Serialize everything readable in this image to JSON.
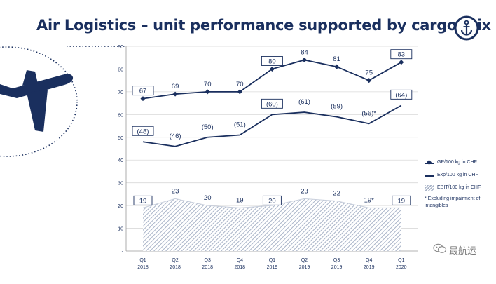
{
  "title": "Air Logistics – unit performance supported by cargo mix",
  "watermark": "最航运",
  "chart_data": {
    "type": "line",
    "categories": [
      "Q1 2018",
      "Q2 2018",
      "Q3 2018",
      "Q4 2018",
      "Q1 2019",
      "Q2 2019",
      "Q3 2019",
      "Q4 2019",
      "Q1 2020"
    ],
    "category_labels": [
      [
        "Q1",
        "2018"
      ],
      [
        "Q2",
        "2018"
      ],
      [
        "Q3",
        "2018"
      ],
      [
        "Q4",
        "2018"
      ],
      [
        "Q1",
        "2019"
      ],
      [
        "Q2",
        "2019"
      ],
      [
        "Q3",
        "2019"
      ],
      [
        "Q4",
        "2019"
      ],
      [
        "Q1",
        "2020"
      ]
    ],
    "series": [
      {
        "name": "GP/100 kg in CHF",
        "style": "line-diamond",
        "values": [
          67,
          69,
          70,
          70,
          80,
          84,
          81,
          75,
          83
        ],
        "labels": [
          "67",
          "69",
          "70",
          "70",
          "80",
          "84",
          "81",
          "75",
          "83"
        ],
        "boxed": [
          true,
          false,
          false,
          false,
          true,
          false,
          false,
          false,
          true
        ]
      },
      {
        "name": "Exp/100 kg in CHF",
        "style": "line",
        "values": [
          48,
          46,
          50,
          51,
          60,
          61,
          59,
          56,
          64
        ],
        "labels": [
          "(48)",
          "(46)",
          "(50)",
          "(51)",
          "(60)",
          "(61)",
          "(59)",
          "(56)*",
          "(64)"
        ],
        "boxed": [
          true,
          false,
          false,
          false,
          true,
          false,
          false,
          false,
          true
        ]
      },
      {
        "name": "EBIT/100 kg in CHF",
        "style": "area-hatched",
        "values": [
          19,
          23,
          20,
          19,
          20,
          23,
          22,
          19,
          19
        ],
        "labels": [
          "19",
          "23",
          "20",
          "19",
          "20",
          "23",
          "22",
          "19*",
          "19"
        ],
        "boxed": [
          true,
          false,
          false,
          false,
          true,
          false,
          false,
          false,
          true
        ]
      }
    ],
    "yaxis": {
      "min": 0,
      "max": 90,
      "ticks": [
        90,
        80,
        70,
        60,
        50,
        40,
        30,
        20,
        10
      ],
      "zero_label": "-"
    },
    "legend_position": "right",
    "footnote": "* Excluding impairment of intangibles",
    "colors": {
      "primary": "#1a2f5e",
      "hatch": "#a9b4c8",
      "grid": "#d9d9d9"
    }
  }
}
